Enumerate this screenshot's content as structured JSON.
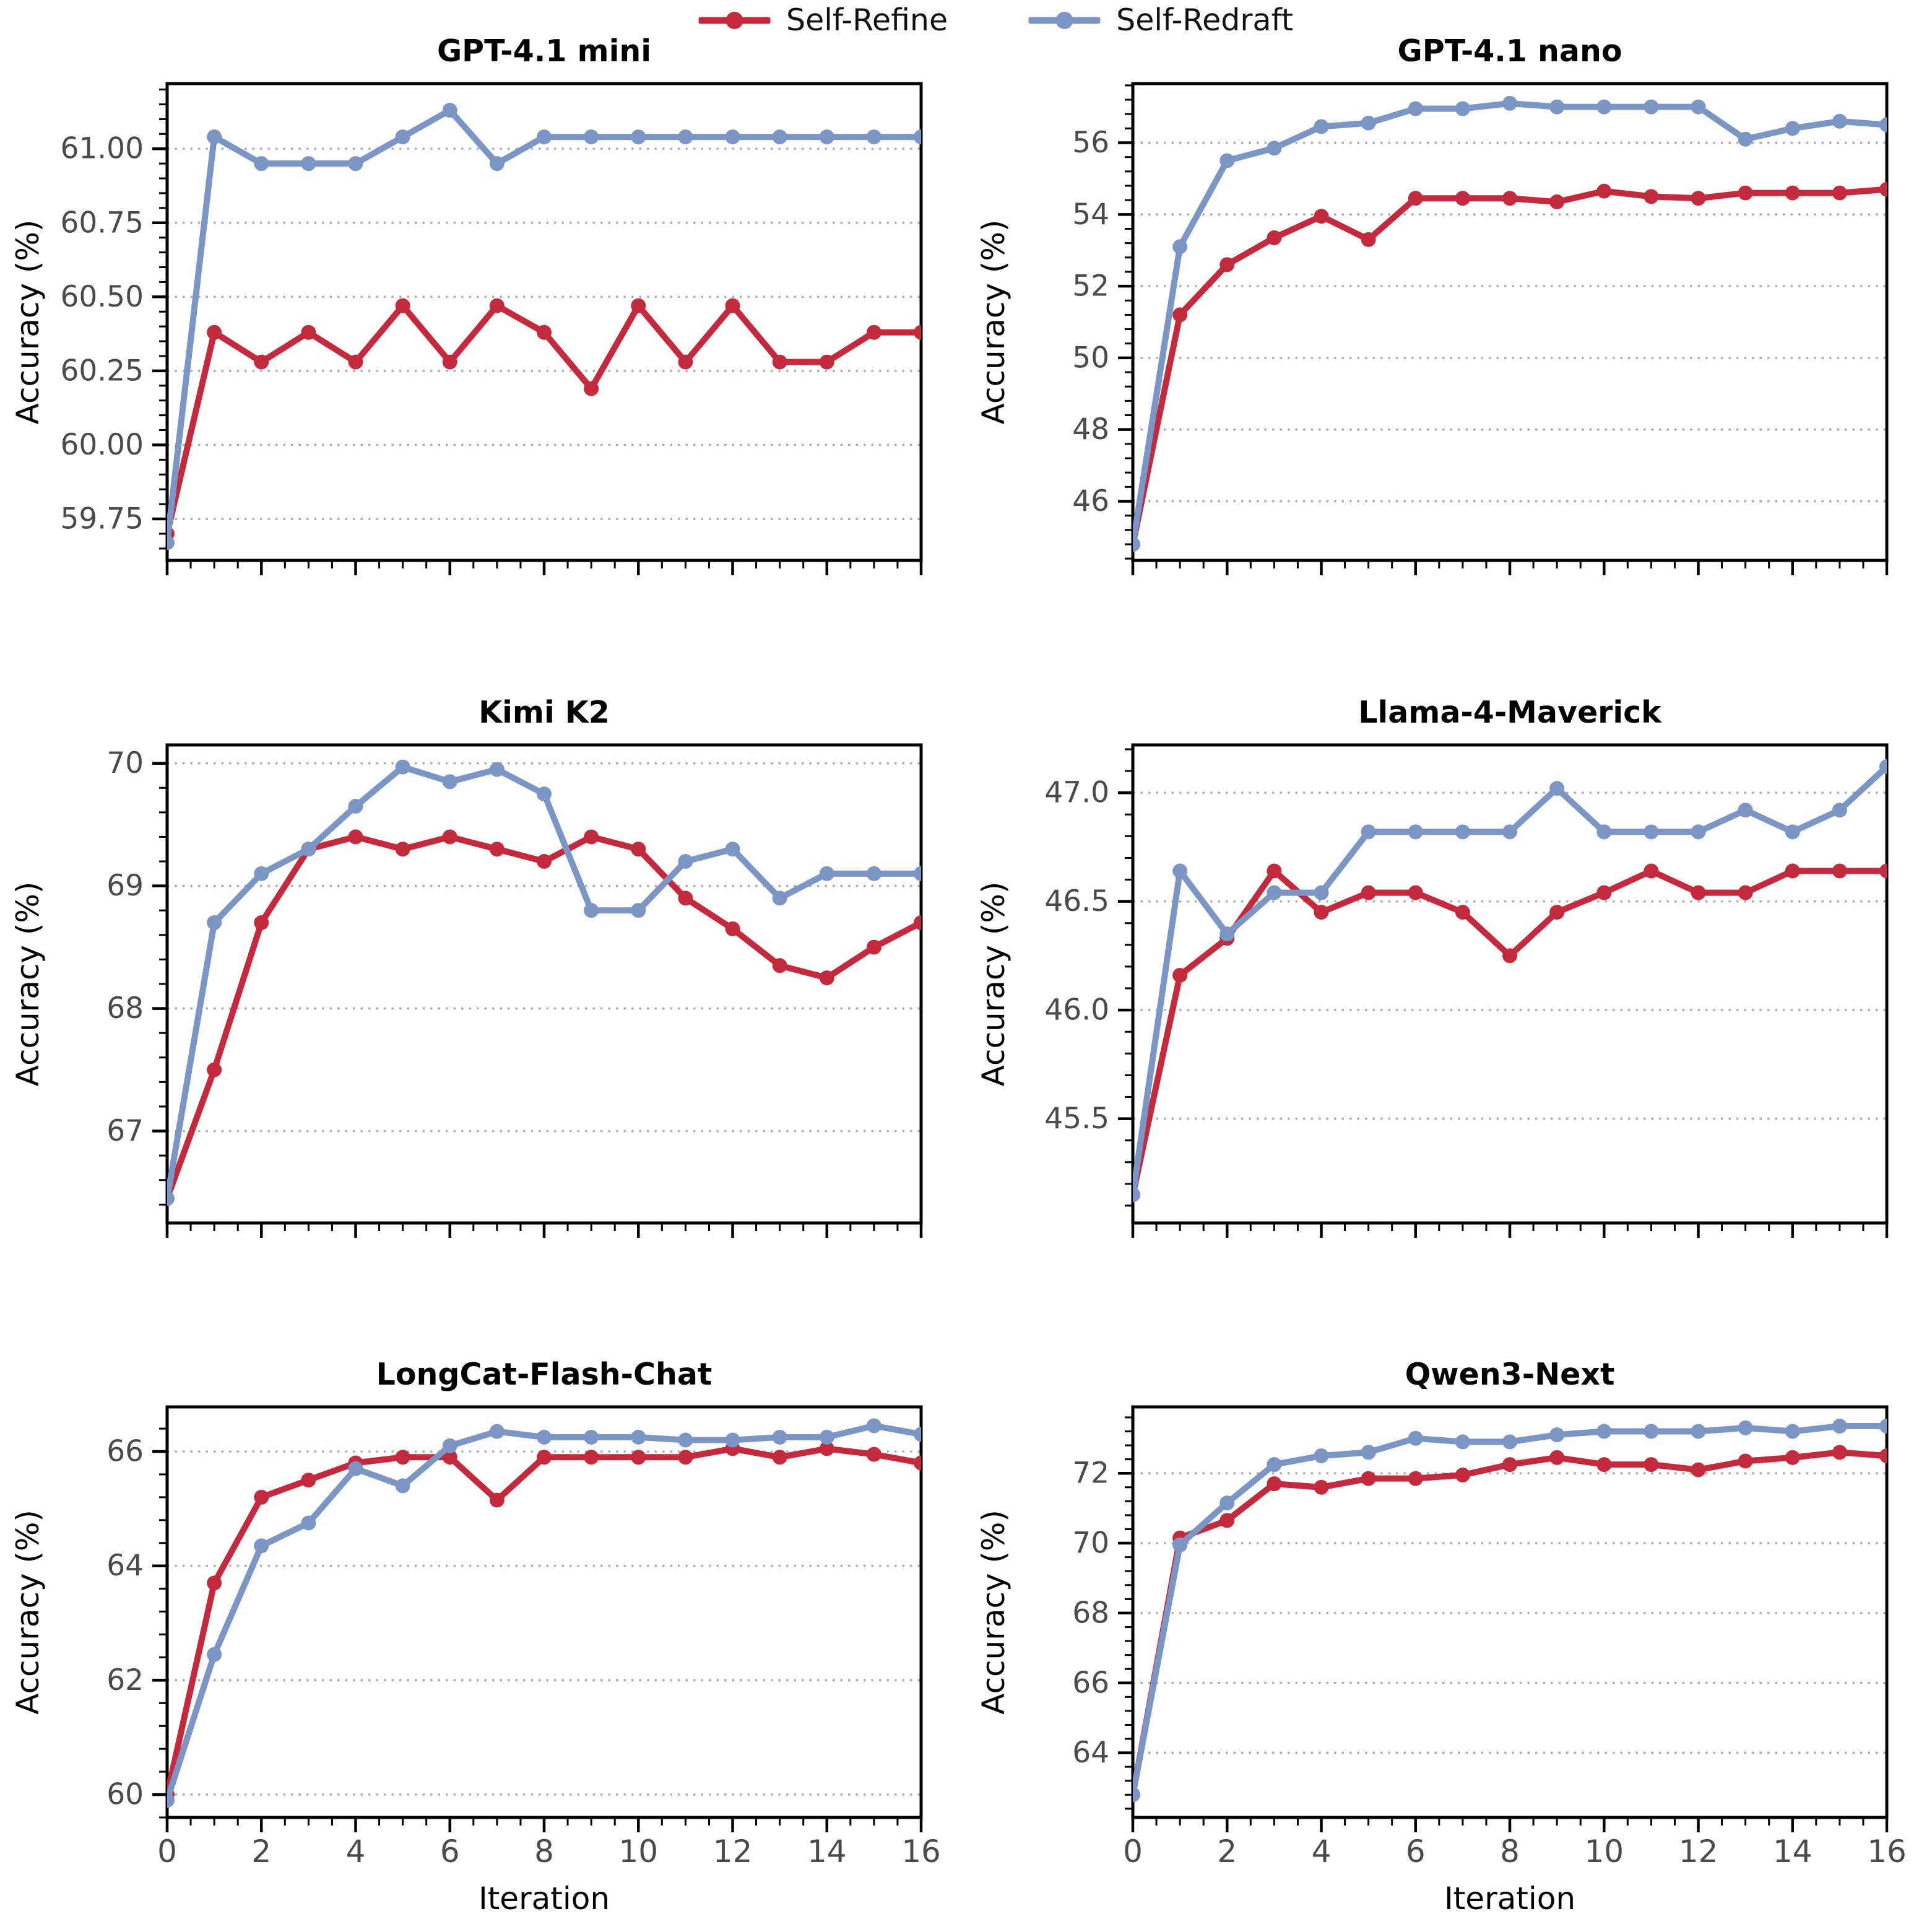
{
  "legend": {
    "items": [
      {
        "label": "Self-Refine",
        "color": "#c32a3e"
      },
      {
        "label": "Self-Redraft",
        "color": "#7b95c4"
      }
    ],
    "position": "top-center"
  },
  "axis": {
    "x_label": "Iteration",
    "y_label": "Accuracy (%)"
  },
  "chart_data": [
    {
      "type": "line",
      "title": "GPT-4.1 mini",
      "xlabel": "",
      "ylabel": "Accuracy (%)",
      "x": [
        0,
        1,
        2,
        3,
        4,
        5,
        6,
        7,
        8,
        9,
        10,
        11,
        12,
        13,
        14,
        15,
        16
      ],
      "xlim": [
        0,
        16
      ],
      "ylim": [
        59.61,
        61.22
      ],
      "grid": true,
      "show_x_tick_labels": false,
      "xtick_values": [
        0,
        2,
        4,
        6,
        8,
        10,
        12,
        14,
        16
      ],
      "xtick_labels": [
        "0",
        "2",
        "4",
        "6",
        "8",
        "10",
        "12",
        "14",
        "16"
      ],
      "ytick_values": [
        59.75,
        60.0,
        60.25,
        60.5,
        60.75,
        61.0
      ],
      "ytick_labels": [
        "59.75",
        "60.00",
        "60.25",
        "60.50",
        "60.75",
        "61.00"
      ],
      "series": [
        {
          "name": "Self-Refine",
          "values": [
            59.7,
            60.38,
            60.28,
            60.38,
            60.28,
            60.47,
            60.28,
            60.47,
            60.38,
            60.19,
            60.47,
            60.28,
            60.47,
            60.28,
            60.28,
            60.38,
            60.38
          ]
        },
        {
          "name": "Self-Redraft",
          "values": [
            59.67,
            61.04,
            60.95,
            60.95,
            60.95,
            61.04,
            61.13,
            60.95,
            61.04,
            61.04,
            61.04,
            61.04,
            61.04,
            61.04,
            61.04,
            61.04,
            61.04
          ]
        }
      ]
    },
    {
      "type": "line",
      "title": "GPT-4.1 nano",
      "xlabel": "",
      "ylabel": "Accuracy (%)",
      "x": [
        0,
        1,
        2,
        3,
        4,
        5,
        6,
        7,
        8,
        9,
        10,
        11,
        12,
        13,
        14,
        15,
        16
      ],
      "xlim": [
        0,
        16
      ],
      "ylim": [
        44.35,
        57.65
      ],
      "grid": true,
      "show_x_tick_labels": false,
      "xtick_values": [
        0,
        2,
        4,
        6,
        8,
        10,
        12,
        14,
        16
      ],
      "xtick_labels": [
        "0",
        "2",
        "4",
        "6",
        "8",
        "10",
        "12",
        "14",
        "16"
      ],
      "ytick_values": [
        46,
        48,
        50,
        52,
        54,
        56
      ],
      "ytick_labels": [
        "46",
        "48",
        "50",
        "52",
        "54",
        "56"
      ],
      "series": [
        {
          "name": "Self-Refine",
          "values": [
            44.8,
            51.2,
            52.6,
            53.35,
            53.95,
            53.3,
            54.45,
            54.45,
            54.45,
            54.35,
            54.65,
            54.5,
            54.45,
            54.6,
            54.6,
            54.6,
            54.7
          ]
        },
        {
          "name": "Self-Redraft",
          "values": [
            44.8,
            53.1,
            55.5,
            55.85,
            56.45,
            56.55,
            56.95,
            56.95,
            57.1,
            57.0,
            57.0,
            57.0,
            57.0,
            56.1,
            56.4,
            56.6,
            56.5
          ]
        }
      ]
    },
    {
      "type": "line",
      "title": "Kimi K2",
      "xlabel": "",
      "ylabel": "Accuracy (%)",
      "x": [
        0,
        1,
        2,
        3,
        4,
        5,
        6,
        7,
        8,
        9,
        10,
        11,
        12,
        13,
        14,
        15,
        16
      ],
      "xlim": [
        0,
        16
      ],
      "ylim": [
        66.25,
        70.15
      ],
      "grid": true,
      "show_x_tick_labels": false,
      "xtick_values": [
        0,
        2,
        4,
        6,
        8,
        10,
        12,
        14,
        16
      ],
      "xtick_labels": [
        "0",
        "2",
        "4",
        "6",
        "8",
        "10",
        "12",
        "14",
        "16"
      ],
      "ytick_values": [
        67,
        68,
        69,
        70
      ],
      "ytick_labels": [
        "67",
        "68",
        "69",
        "70"
      ],
      "series": [
        {
          "name": "Self-Refine",
          "values": [
            66.45,
            67.5,
            68.7,
            69.3,
            69.4,
            69.3,
            69.4,
            69.3,
            69.2,
            69.4,
            69.3,
            68.9,
            68.65,
            68.35,
            68.25,
            68.5,
            68.7
          ]
        },
        {
          "name": "Self-Redraft",
          "values": [
            66.45,
            68.7,
            69.1,
            69.3,
            69.65,
            69.97,
            69.85,
            69.95,
            69.75,
            68.8,
            68.8,
            69.2,
            69.3,
            68.9,
            69.1,
            69.1,
            69.1
          ]
        }
      ]
    },
    {
      "type": "line",
      "title": "Llama-4-Maverick",
      "xlabel": "",
      "ylabel": "Accuracy (%)",
      "x": [
        0,
        1,
        2,
        3,
        4,
        5,
        6,
        7,
        8,
        9,
        10,
        11,
        12,
        13,
        14,
        15,
        16
      ],
      "xlim": [
        0,
        16
      ],
      "ylim": [
        45.02,
        47.22
      ],
      "grid": true,
      "show_x_tick_labels": false,
      "xtick_values": [
        0,
        2,
        4,
        6,
        8,
        10,
        12,
        14,
        16
      ],
      "xtick_labels": [
        "0",
        "2",
        "4",
        "6",
        "8",
        "10",
        "12",
        "14",
        "16"
      ],
      "ytick_values": [
        45.5,
        46.0,
        46.5,
        47.0
      ],
      "ytick_labels": [
        "45.5",
        "46.0",
        "46.5",
        "47.0"
      ],
      "series": [
        {
          "name": "Self-Refine",
          "values": [
            45.15,
            46.16,
            46.33,
            46.64,
            46.45,
            46.54,
            46.54,
            46.45,
            46.25,
            46.45,
            46.54,
            46.64,
            46.54,
            46.54,
            46.64,
            46.64,
            46.64
          ]
        },
        {
          "name": "Self-Redraft",
          "values": [
            45.15,
            46.64,
            46.35,
            46.54,
            46.54,
            46.82,
            46.82,
            46.82,
            46.82,
            47.02,
            46.82,
            46.82,
            46.82,
            46.92,
            46.82,
            46.92,
            47.12
          ]
        }
      ]
    },
    {
      "type": "line",
      "title": "LongCat-Flash-Chat",
      "xlabel": "Iteration",
      "ylabel": "Accuracy (%)",
      "x": [
        0,
        1,
        2,
        3,
        4,
        5,
        6,
        7,
        8,
        9,
        10,
        11,
        12,
        13,
        14,
        15,
        16
      ],
      "xlim": [
        0,
        16
      ],
      "ylim": [
        59.6,
        66.78
      ],
      "grid": true,
      "show_x_tick_labels": true,
      "xtick_values": [
        0,
        2,
        4,
        6,
        8,
        10,
        12,
        14,
        16
      ],
      "xtick_labels": [
        "0",
        "2",
        "4",
        "6",
        "8",
        "10",
        "12",
        "14",
        "16"
      ],
      "ytick_values": [
        60,
        62,
        64,
        66
      ],
      "ytick_labels": [
        "60",
        "62",
        "64",
        "66"
      ],
      "series": [
        {
          "name": "Self-Refine",
          "values": [
            60.0,
            63.7,
            65.2,
            65.5,
            65.8,
            65.9,
            65.9,
            65.15,
            65.9,
            65.9,
            65.9,
            65.9,
            66.05,
            65.9,
            66.05,
            65.95,
            65.8
          ]
        },
        {
          "name": "Self-Redraft",
          "values": [
            59.9,
            62.45,
            64.35,
            64.75,
            65.7,
            65.4,
            66.1,
            66.35,
            66.25,
            66.25,
            66.25,
            66.2,
            66.2,
            66.25,
            66.25,
            66.45,
            66.3
          ]
        }
      ]
    },
    {
      "type": "line",
      "title": "Qwen3-Next",
      "xlabel": "Iteration",
      "ylabel": "Accuracy (%)",
      "x": [
        0,
        1,
        2,
        3,
        4,
        5,
        6,
        7,
        8,
        9,
        10,
        11,
        12,
        13,
        14,
        15,
        16
      ],
      "xlim": [
        0,
        16
      ],
      "ylim": [
        62.15,
        73.9
      ],
      "grid": true,
      "show_x_tick_labels": true,
      "xtick_values": [
        0,
        2,
        4,
        6,
        8,
        10,
        12,
        14,
        16
      ],
      "xtick_labels": [
        "0",
        "2",
        "4",
        "6",
        "8",
        "10",
        "12",
        "14",
        "16"
      ],
      "ytick_values": [
        64,
        66,
        68,
        70,
        72
      ],
      "ytick_labels": [
        "64",
        "66",
        "68",
        "70",
        "72"
      ],
      "series": [
        {
          "name": "Self-Refine",
          "values": [
            62.8,
            70.15,
            70.65,
            71.7,
            71.6,
            71.85,
            71.85,
            71.95,
            72.25,
            72.45,
            72.25,
            72.25,
            72.1,
            72.35,
            72.45,
            72.6,
            72.5
          ]
        },
        {
          "name": "Self-Redraft",
          "values": [
            62.8,
            69.95,
            71.15,
            72.25,
            72.5,
            72.6,
            73.0,
            72.9,
            72.9,
            73.1,
            73.2,
            73.2,
            73.2,
            73.3,
            73.2,
            73.35,
            73.35
          ]
        }
      ]
    }
  ]
}
